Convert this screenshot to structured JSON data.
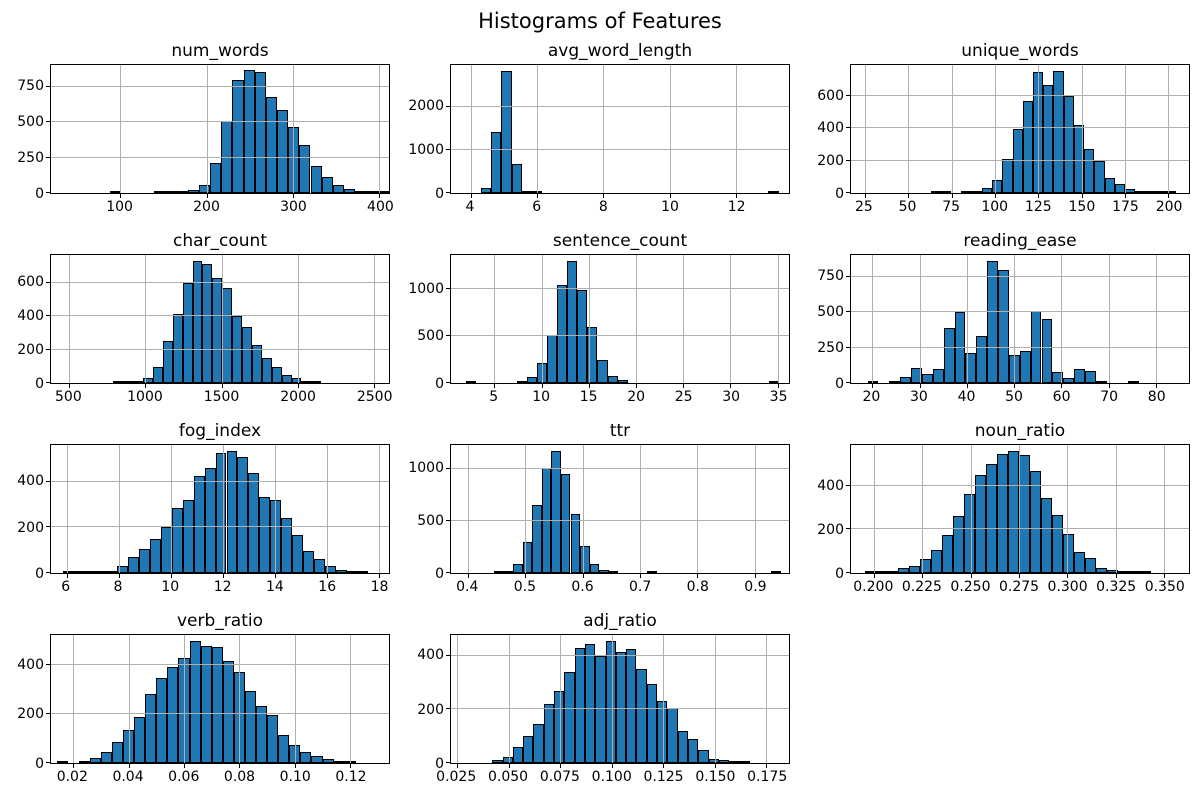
{
  "figure_title": "Histograms of Features",
  "colors": {
    "bar": "#1f77b4",
    "bar_edge": "#000000",
    "grid": "#b0b0b0",
    "axis": "#000000",
    "background": "#ffffff",
    "text": "#000000"
  },
  "chart_data": [
    {
      "type": "bar",
      "subtype": "histogram",
      "title": "num_words",
      "xlim": [
        20,
        411
      ],
      "ylim": [
        0,
        905
      ],
      "xticks": [
        100,
        200,
        300,
        400
      ],
      "xtick_labels": [
        "100",
        "200",
        "300",
        "400"
      ],
      "yticks": [
        0,
        250,
        500,
        750
      ],
      "bin_start": 88,
      "bin_width": 12.9,
      "counts": [
        6,
        0,
        0,
        0,
        2,
        5,
        10,
        22,
        60,
        210,
        510,
        800,
        870,
        858,
        680,
        590,
        465,
        340,
        190,
        115,
        55,
        30,
        15,
        8,
        6
      ]
    },
    {
      "type": "bar",
      "subtype": "histogram",
      "title": "avg_word_length",
      "xlim": [
        3.4,
        13.6
      ],
      "ylim": [
        0,
        2960
      ],
      "xticks": [
        4,
        6,
        8,
        10,
        12
      ],
      "xtick_labels": [
        "4",
        "6",
        "8",
        "10",
        "12"
      ],
      "yticks": [
        0,
        1000,
        2000
      ],
      "bin_start": 4.3,
      "bin_width": 0.31,
      "counts": [
        120,
        1400,
        2820,
        680,
        30,
        4,
        0,
        0,
        0,
        0,
        0,
        0,
        0,
        0,
        0,
        0,
        0,
        0,
        0,
        0,
        0,
        0,
        0,
        0,
        0,
        0,
        0,
        0,
        2
      ]
    },
    {
      "type": "bar",
      "subtype": "histogram",
      "title": "unique_words",
      "xlim": [
        17,
        212
      ],
      "ylim": [
        0,
        792
      ],
      "xticks": [
        25,
        50,
        75,
        100,
        125,
        150,
        175,
        200
      ],
      "xtick_labels": [
        "25",
        "50",
        "75",
        "100",
        "125",
        "150",
        "175",
        "200"
      ],
      "yticks": [
        0,
        200,
        400,
        600
      ],
      "bin_start": 63,
      "bin_width": 5.9,
      "counts": [
        4,
        2,
        0,
        2,
        3,
        30,
        80,
        210,
        395,
        570,
        750,
        670,
        755,
        600,
        420,
        270,
        200,
        90,
        55,
        25,
        15,
        5,
        3,
        8
      ]
    },
    {
      "type": "bar",
      "subtype": "histogram",
      "title": "char_count",
      "xlim": [
        380,
        2600
      ],
      "ylim": [
        0,
        766
      ],
      "xticks": [
        500,
        1000,
        1500,
        2000,
        2500
      ],
      "xtick_labels": [
        "500",
        "1000",
        "1500",
        "2000",
        "2500"
      ],
      "yticks": [
        0,
        200,
        400,
        600
      ],
      "bin_start": 790,
      "bin_width": 65,
      "counts": [
        4,
        3,
        8,
        30,
        95,
        250,
        415,
        600,
        730,
        715,
        630,
        570,
        400,
        335,
        230,
        150,
        95,
        50,
        30,
        15,
        8
      ]
    },
    {
      "type": "bar",
      "subtype": "histogram",
      "title": "sentence_count",
      "xlim": [
        0.4,
        36.2
      ],
      "ylim": [
        0,
        1365
      ],
      "xticks": [
        5,
        10,
        15,
        20,
        25,
        30,
        35
      ],
      "xtick_labels": [
        "5",
        "10",
        "15",
        "20",
        "25",
        "30",
        "35"
      ],
      "yticks": [
        0,
        500,
        1000
      ],
      "bin_start": 2,
      "bin_width": 1.07,
      "counts": [
        2,
        0,
        0,
        0,
        0,
        25,
        60,
        215,
        510,
        1050,
        1300,
        990,
        600,
        250,
        80,
        35,
        0,
        0,
        0,
        0,
        0,
        0,
        0,
        0,
        0,
        0,
        0,
        0,
        0,
        0,
        2
      ]
    },
    {
      "type": "bar",
      "subtype": "histogram",
      "title": "reading_ease",
      "xlim": [
        15.5,
        87
      ],
      "ylim": [
        0,
        903
      ],
      "xticks": [
        20,
        30,
        40,
        50,
        60,
        70,
        80
      ],
      "xtick_labels": [
        "20",
        "30",
        "40",
        "50",
        "60",
        "70",
        "80"
      ],
      "yticks": [
        0,
        250,
        500,
        750
      ],
      "bin_start": 19,
      "bin_width": 2.3,
      "counts": [
        4,
        0,
        3,
        45,
        105,
        62,
        100,
        388,
        500,
        210,
        330,
        860,
        800,
        195,
        225,
        510,
        455,
        80,
        35,
        100,
        85,
        15,
        0,
        0,
        8
      ]
    },
    {
      "type": "bar",
      "subtype": "histogram",
      "title": "fog_index",
      "xlim": [
        5.4,
        18.4
      ],
      "ylim": [
        0,
        562
      ],
      "xticks": [
        6,
        8,
        10,
        12,
        14,
        16,
        18
      ],
      "xtick_labels": [
        "6",
        "8",
        "10",
        "12",
        "14",
        "16",
        "18"
      ],
      "yticks": [
        0,
        200,
        400
      ],
      "bin_start": 5.85,
      "bin_width": 0.42,
      "counts": [
        3,
        2,
        2,
        4,
        8,
        30,
        70,
        105,
        150,
        200,
        285,
        320,
        425,
        460,
        525,
        535,
        510,
        440,
        335,
        320,
        240,
        165,
        95,
        60,
        30,
        15,
        8,
        3
      ]
    },
    {
      "type": "bar",
      "subtype": "histogram",
      "title": "ttr",
      "xlim": [
        0.37,
        0.96
      ],
      "ylim": [
        0,
        1229
      ],
      "xticks": [
        0.4,
        0.5,
        0.6,
        0.7,
        0.8,
        0.9
      ],
      "xtick_labels": [
        "0.4",
        "0.5",
        "0.6",
        "0.7",
        "0.8",
        "0.9"
      ],
      "yticks": [
        0,
        500,
        1000
      ],
      "bin_start": 0.445,
      "bin_width": 0.0167,
      "counts": [
        8,
        20,
        90,
        300,
        650,
        1005,
        1170,
        950,
        570,
        260,
        85,
        30,
        10,
        0,
        0,
        0,
        8,
        0,
        0,
        0,
        0,
        0,
        0,
        0,
        0,
        0,
        0,
        0,
        0,
        2
      ]
    },
    {
      "type": "bar",
      "subtype": "histogram",
      "title": "noun_ratio",
      "xlim": [
        0.188,
        0.363
      ],
      "ylim": [
        0,
        588
      ],
      "xticks": [
        0.2,
        0.225,
        0.25,
        0.275,
        0.3,
        0.325,
        0.35
      ],
      "xtick_labels": [
        "0.200",
        "0.225",
        "0.250",
        "0.275",
        "0.300",
        "0.325",
        "0.350"
      ],
      "yticks": [
        0,
        200,
        400
      ],
      "bin_start": 0.195,
      "bin_width": 0.0057,
      "counts": [
        4,
        6,
        10,
        22,
        30,
        65,
        105,
        175,
        260,
        365,
        450,
        500,
        545,
        560,
        540,
        470,
        345,
        265,
        180,
        95,
        70,
        25,
        15,
        8,
        3,
        2
      ]
    },
    {
      "type": "bar",
      "subtype": "histogram",
      "title": "verb_ratio",
      "xlim": [
        0.012,
        0.134
      ],
      "ylim": [
        0,
        525
      ],
      "xticks": [
        0.02,
        0.04,
        0.06,
        0.08,
        0.1,
        0.12
      ],
      "xtick_labels": [
        "0.02",
        "0.04",
        "0.06",
        "0.08",
        "0.10",
        "0.12"
      ],
      "yticks": [
        0,
        200,
        400
      ],
      "bin_start": 0.014,
      "bin_width": 0.004,
      "counts": [
        4,
        0,
        10,
        20,
        45,
        85,
        135,
        190,
        285,
        350,
        395,
        430,
        500,
        480,
        475,
        420,
        375,
        295,
        235,
        195,
        115,
        75,
        45,
        30,
        18,
        8,
        4
      ]
    },
    {
      "type": "bar",
      "subtype": "histogram",
      "title": "adj_ratio",
      "xlim": [
        0.022,
        0.186
      ],
      "ylim": [
        0,
        478
      ],
      "xticks": [
        0.025,
        0.05,
        0.075,
        0.1,
        0.125,
        0.15,
        0.175
      ],
      "xtick_labels": [
        "0.025",
        "0.050",
        "0.075",
        "0.100",
        "0.125",
        "0.150",
        "0.175"
      ],
      "yticks": [
        0,
        200,
        400
      ],
      "bin_start": 0.042,
      "bin_width": 0.005,
      "counts": [
        10,
        22,
        60,
        100,
        145,
        220,
        270,
        340,
        430,
        445,
        400,
        455,
        415,
        425,
        350,
        295,
        230,
        205,
        120,
        90,
        50,
        15,
        10,
        3,
        2
      ]
    }
  ]
}
